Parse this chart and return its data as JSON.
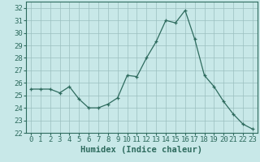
{
  "x": [
    0,
    1,
    2,
    3,
    4,
    5,
    6,
    7,
    8,
    9,
    10,
    11,
    12,
    13,
    14,
    15,
    16,
    17,
    18,
    19,
    20,
    21,
    22,
    23
  ],
  "y": [
    25.5,
    25.5,
    25.5,
    25.2,
    25.7,
    24.7,
    24.0,
    24.0,
    24.3,
    24.8,
    26.6,
    26.5,
    28.0,
    29.3,
    31.0,
    30.8,
    31.8,
    29.5,
    26.6,
    25.7,
    24.5,
    23.5,
    22.7,
    22.3
  ],
  "line_color": "#2e6b5e",
  "marker_color": "#2e6b5e",
  "bg_color": "#c8e8e8",
  "grid_color": "#9bbfbf",
  "xlabel": "Humidex (Indice chaleur)",
  "ylim": [
    22,
    32.5
  ],
  "xlim": [
    -0.5,
    23.5
  ],
  "yticks": [
    22,
    23,
    24,
    25,
    26,
    27,
    28,
    29,
    30,
    31,
    32
  ],
  "xticks": [
    0,
    1,
    2,
    3,
    4,
    5,
    6,
    7,
    8,
    9,
    10,
    11,
    12,
    13,
    14,
    15,
    16,
    17,
    18,
    19,
    20,
    21,
    22,
    23
  ],
  "xlabel_fontsize": 7.5,
  "tick_fontsize": 6.5
}
